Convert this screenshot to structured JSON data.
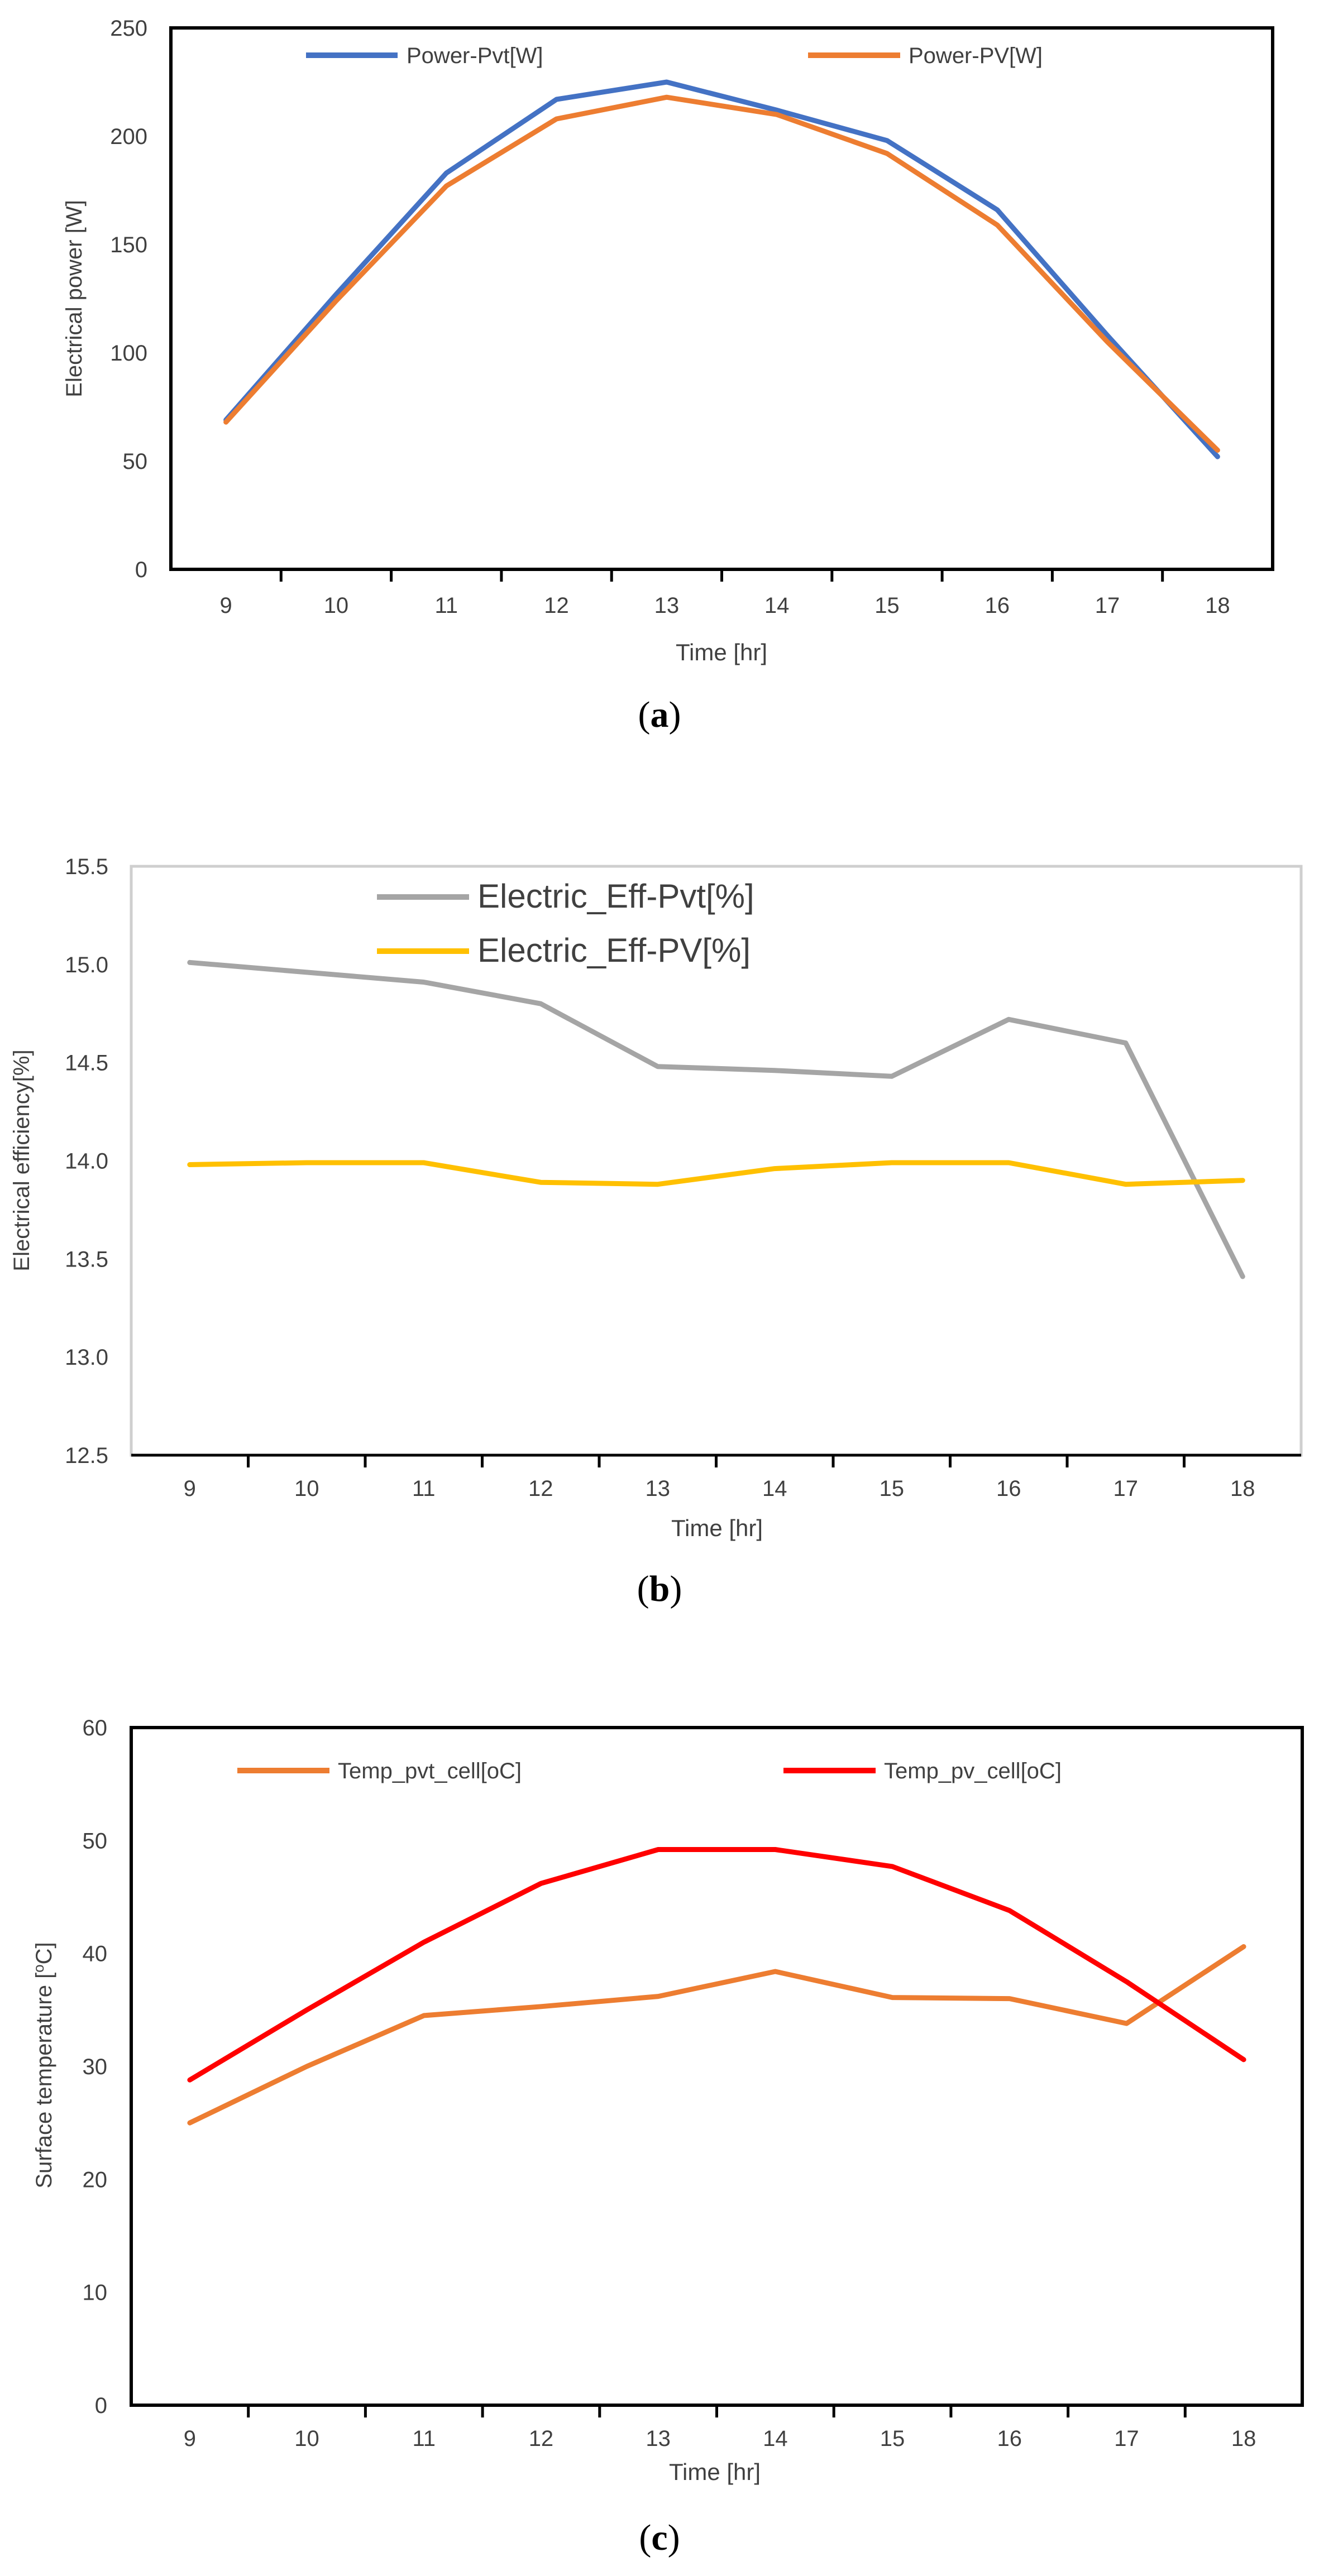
{
  "chart_data": [
    {
      "panel_label": "a",
      "type": "line",
      "title": "",
      "xlabel": "Time [hr]",
      "ylabel": "Electrical power [W]",
      "categories": [
        "9",
        "10",
        "11",
        "12",
        "13",
        "14",
        "15",
        "16",
        "17",
        "18"
      ],
      "ylim": [
        0,
        250
      ],
      "yticks": [
        "0",
        "50",
        "100",
        "150",
        "200",
        "250"
      ],
      "grid": false,
      "legend_position": "top",
      "series": [
        {
          "name": "Power-Pvt[W]",
          "color": "#4472C4",
          "values": [
            69,
            127,
            183,
            217,
            225,
            212,
            198,
            166,
            108,
            52
          ]
        },
        {
          "name": "Power-PV[W]",
          "color": "#ED7D31",
          "values": [
            68,
            124,
            177,
            208,
            218,
            210,
            192,
            159,
            105,
            55
          ]
        }
      ]
    },
    {
      "panel_label": "b",
      "type": "line",
      "title": "",
      "xlabel": "Time [hr]",
      "ylabel": "Electrical efficiency[%]",
      "categories": [
        "9",
        "10",
        "11",
        "12",
        "13",
        "14",
        "15",
        "16",
        "17",
        "18"
      ],
      "ylim": [
        12.5,
        15.5
      ],
      "yticks": [
        "12.5",
        "13.0",
        "13.5",
        "14.0",
        "14.5",
        "15.0",
        "15.5"
      ],
      "grid": false,
      "legend_position": "top",
      "series": [
        {
          "name": "Electric_Eff-Pvt[%]",
          "color": "#A5A5A5",
          "values": [
            15.01,
            14.96,
            14.91,
            14.8,
            14.48,
            14.46,
            14.43,
            14.72,
            14.6,
            13.41
          ]
        },
        {
          "name": "Electric_Eff-PV[%]",
          "color": "#FFC000",
          "values": [
            13.98,
            13.99,
            13.99,
            13.89,
            13.88,
            13.96,
            13.99,
            13.99,
            13.88,
            13.9
          ]
        }
      ]
    },
    {
      "panel_label": "c",
      "type": "line",
      "title": "",
      "xlabel": "Time [hr]",
      "ylabel_prefix": "Surface temperature [",
      "ylabel_sup": "o",
      "ylabel_suffix": "C]",
      "categories": [
        "9",
        "10",
        "11",
        "12",
        "13",
        "14",
        "15",
        "16",
        "17",
        "18"
      ],
      "ylim": [
        0,
        60
      ],
      "yticks": [
        "0",
        "10",
        "20",
        "30",
        "40",
        "50",
        "60"
      ],
      "grid": false,
      "legend_position": "top",
      "series": [
        {
          "name": "Temp_pvt_cell[oC]",
          "color": "#ED7D31",
          "values": [
            25.0,
            30.0,
            34.5,
            35.3,
            36.2,
            38.4,
            36.1,
            36.0,
            33.8,
            40.6
          ]
        },
        {
          "name": "Temp_pv_cell[oC]",
          "color": "#FF0000",
          "values": [
            28.8,
            35.0,
            41.0,
            46.2,
            49.2,
            49.2,
            47.7,
            43.8,
            37.5,
            30.6
          ]
        }
      ]
    }
  ]
}
